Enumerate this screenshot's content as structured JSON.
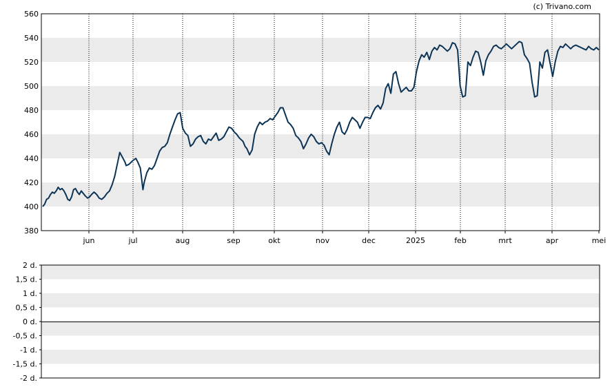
{
  "copyright": "(c) Trivano.com",
  "chart_data": [
    {
      "type": "line",
      "title": "",
      "xlabel": "",
      "ylabel": "",
      "ylim": [
        380,
        560
      ],
      "y_ticks": [
        "560",
        "540",
        "520",
        "500",
        "480",
        "460",
        "440",
        "420",
        "400",
        "380"
      ],
      "x_ticks": [
        "jun",
        "jul",
        "aug",
        "sep",
        "okt",
        "nov",
        "dec",
        "2025",
        "feb",
        "mrt",
        "apr",
        "mei"
      ],
      "grid": "alternating horizontal bands, dotted vertical lines at month boundaries",
      "colors": {
        "line": "#0b3355",
        "band": "#ebebeb"
      },
      "series": [
        {
          "x": [
            0,
            3,
            6,
            9,
            12,
            15,
            18,
            21,
            24,
            27,
            30,
            33,
            36,
            39,
            42,
            45,
            48,
            51,
            54,
            57,
            60,
            63,
            66,
            70,
            73,
            76,
            80,
            84,
            88,
            92,
            96,
            100,
            104,
            108,
            112,
            116,
            120,
            124,
            128,
            130,
            134,
            140,
            145,
            148,
            152,
            156,
            158,
            162,
            166,
            170,
            174,
            178,
            182,
            186,
            190,
            194,
            198,
            202,
            206,
            210,
            214,
            218,
            222,
            226,
            230,
            234,
            238,
            242,
            246,
            250,
            254,
            258,
            262,
            266,
            270,
            274,
            278,
            282,
            286,
            290,
            294,
            298,
            302,
            306,
            310,
            312,
            315,
            318,
            322,
            326,
            330,
            334,
            338,
            342,
            346,
            350,
            354,
            358,
            362,
            366,
            370,
            374,
            378,
            382,
            386,
            390,
            394,
            398,
            402,
            406,
            410,
            414,
            418,
            422,
            426,
            430,
            434,
            438,
            442,
            446,
            450,
            454,
            458,
            462,
            466,
            470,
            474,
            478,
            482,
            486,
            490,
            494,
            498,
            502,
            506,
            510,
            514,
            518,
            522,
            526,
            530,
            534,
            538,
            542,
            546,
            550,
            554,
            558,
            562,
            566,
            570,
            574,
            578,
            582,
            586,
            590,
            594,
            598,
            602,
            606,
            610,
            614,
            618,
            622,
            626,
            630,
            634,
            638,
            642,
            646,
            650,
            654,
            658,
            662,
            666,
            670,
            674,
            678,
            682,
            686,
            690,
            694,
            698,
            702,
            706,
            710,
            714,
            718,
            722,
            726,
            730,
            734,
            738,
            742,
            746,
            750,
            754,
            758,
            762,
            766,
            770,
            774,
            778,
            782,
            786,
            790,
            794,
            798,
            802,
            806,
            810,
            814,
            818,
            822,
            826,
            830,
            834,
            838,
            842,
            846,
            850,
            854,
            858,
            862,
            866
          ],
          "values": [
            400,
            402,
            406,
            407,
            410,
            412,
            411,
            413,
            416,
            414,
            415,
            413,
            410,
            406,
            405,
            408,
            414,
            415,
            412,
            410,
            413,
            411,
            409,
            407,
            408,
            410,
            412,
            410,
            407,
            406,
            408,
            411,
            413,
            418,
            425,
            435,
            445,
            441,
            437,
            434,
            435,
            438,
            440,
            437,
            432,
            414,
            420,
            428,
            432,
            431,
            434,
            440,
            446,
            449,
            450,
            453,
            460,
            466,
            472,
            477,
            478,
            465,
            461,
            459,
            450,
            452,
            456,
            458,
            459,
            454,
            452,
            456,
            455,
            458,
            461,
            455,
            456,
            458,
            462,
            466,
            465,
            462,
            460,
            457,
            455,
            454,
            450,
            448,
            443,
            447,
            460,
            466,
            470,
            468,
            470,
            471,
            473,
            472,
            475,
            478,
            482,
            482,
            476,
            470,
            468,
            465,
            459,
            457,
            454,
            448,
            452,
            457,
            460,
            458,
            454,
            452,
            453,
            451,
            446,
            443,
            452,
            460,
            466,
            470,
            462,
            460,
            464,
            470,
            474,
            472,
            470,
            465,
            470,
            474,
            474,
            473,
            478,
            482,
            484,
            481,
            486,
            498,
            502,
            494,
            510,
            512,
            502,
            495,
            497,
            499,
            496,
            496,
            499,
            512,
            521,
            526,
            524,
            528,
            522,
            529,
            532,
            530,
            534,
            533,
            531,
            529,
            531,
            536,
            535,
            530,
            500,
            491,
            492,
            520,
            517,
            524,
            529,
            528,
            520,
            509,
            521,
            526,
            529,
            533,
            534,
            532,
            531,
            533,
            535,
            533,
            531,
            533,
            535,
            537,
            536,
            526,
            523,
            519,
            503,
            491,
            492,
            520,
            515,
            528,
            530,
            519,
            508,
            520,
            529,
            533,
            532,
            535,
            533,
            531,
            533,
            534,
            533,
            532,
            531,
            530,
            533,
            531,
            530,
            532,
            530
          ]
        }
      ]
    },
    {
      "type": "bar",
      "title": "",
      "xlabel": "",
      "ylabel": "",
      "ylim": [
        -2,
        2
      ],
      "y_ticks": [
        "2 d.",
        "1,5 d.",
        "1 d.",
        "0,5 d.",
        "0 d.",
        "-0,5 d.",
        "-1 d.",
        "-1,5 d.",
        "-2 d."
      ],
      "values": []
    }
  ]
}
